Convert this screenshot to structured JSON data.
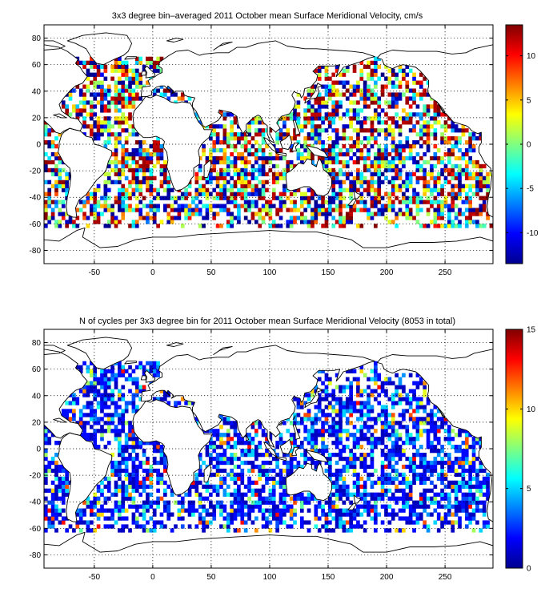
{
  "figure": {
    "colors": {
      "background": "#ffffff",
      "coastline": "#000000",
      "ocean_no_data": "#ffffff"
    },
    "colormap": "jet"
  },
  "chart_data": [
    {
      "type": "heatmap",
      "title": "3x3 degree bin–averaged 2011 October mean Surface Meridional Velocity, cm/s",
      "xlabel": "",
      "ylabel": "",
      "xlim": [
        -93,
        291
      ],
      "ylim": [
        -90,
        90
      ],
      "xticks": [
        -50,
        0,
        50,
        100,
        150,
        200,
        250
      ],
      "yticks": [
        -80,
        -60,
        -40,
        -20,
        0,
        20,
        40,
        60,
        80
      ],
      "bin_size_deg": 3,
      "grid": true,
      "colorbar": {
        "position": "right",
        "min": -13.5,
        "max": 13.5,
        "ticks": [
          -10,
          -5,
          0,
          5,
          10
        ],
        "colormap": "jet"
      },
      "data_coverage": {
        "lat_range": [
          -62,
          66
        ],
        "note_text": ""
      },
      "value_range": [
        -13.5,
        13.5
      ],
      "seed": 7
    },
    {
      "type": "heatmap",
      "title": "N of cycles per 3x3 degree bin for 2011 October mean Surface Meridional Velocity (8053 in total)",
      "xlabel": "",
      "ylabel": "",
      "xlim": [
        -93,
        291
      ],
      "ylim": [
        -90,
        90
      ],
      "xticks": [
        -50,
        0,
        50,
        100,
        150,
        200,
        250
      ],
      "yticks": [
        -80,
        -60,
        -40,
        -20,
        0,
        20,
        40,
        60,
        80
      ],
      "bin_size_deg": 3,
      "grid": true,
      "colorbar": {
        "position": "right",
        "min": 0,
        "max": 15,
        "ticks": [
          0,
          5,
          10,
          15
        ],
        "colormap": "jet"
      },
      "total_cycles": 8053,
      "value_range": [
        0,
        15
      ],
      "seed": 7
    }
  ]
}
